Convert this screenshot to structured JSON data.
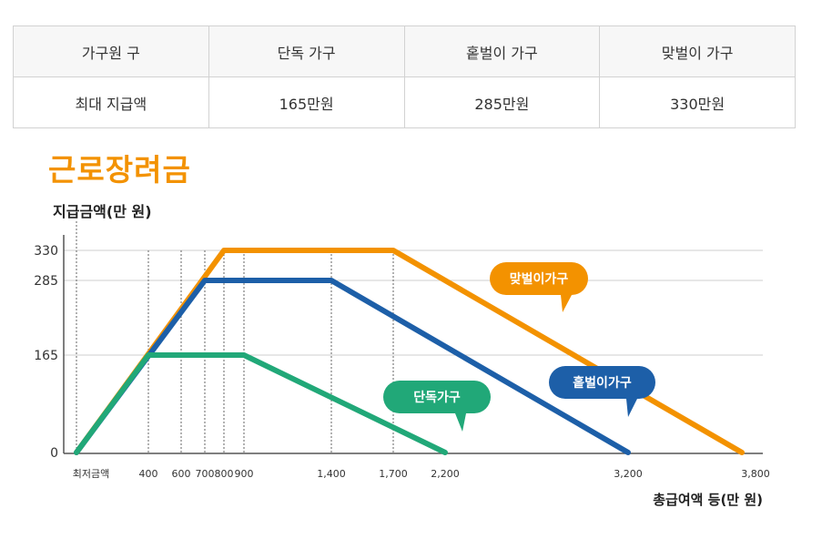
{
  "table": {
    "header": [
      "가구원 구",
      "단독 가구",
      "홑벌이 가구",
      "맞벌이 가구"
    ],
    "row": [
      "최대 지급액",
      "165만원",
      "285만원",
      "330만원"
    ]
  },
  "colors": {
    "title": "#f39200",
    "single": "#21a878",
    "one_earner": "#1d5fa8",
    "dual": "#f39200"
  },
  "chart_data": {
    "type": "line",
    "title": "근로장려금",
    "ylabel": "지급금액(만 원)",
    "xlabel": "총급여액 등(만 원)",
    "ylim": [
      0,
      330
    ],
    "yticks": [
      "330",
      "285",
      "165",
      "0"
    ],
    "xticks": [
      "최저금액",
      "400",
      "600",
      "700",
      "800",
      "900",
      "1,400",
      "1,700",
      "2,200",
      "3,200",
      "3,800"
    ],
    "series": [
      {
        "name": "단독가구",
        "points": [
          [
            0,
            0
          ],
          [
            400,
            165
          ],
          [
            900,
            165
          ],
          [
            2200,
            0
          ]
        ]
      },
      {
        "name": "홑벌이가구",
        "points": [
          [
            0,
            0
          ],
          [
            700,
            285
          ],
          [
            1400,
            285
          ],
          [
            3200,
            0
          ]
        ]
      },
      {
        "name": "맞벌이가구",
        "points": [
          [
            0,
            0
          ],
          [
            800,
            330
          ],
          [
            1700,
            330
          ],
          [
            3800,
            0
          ]
        ]
      }
    ]
  }
}
